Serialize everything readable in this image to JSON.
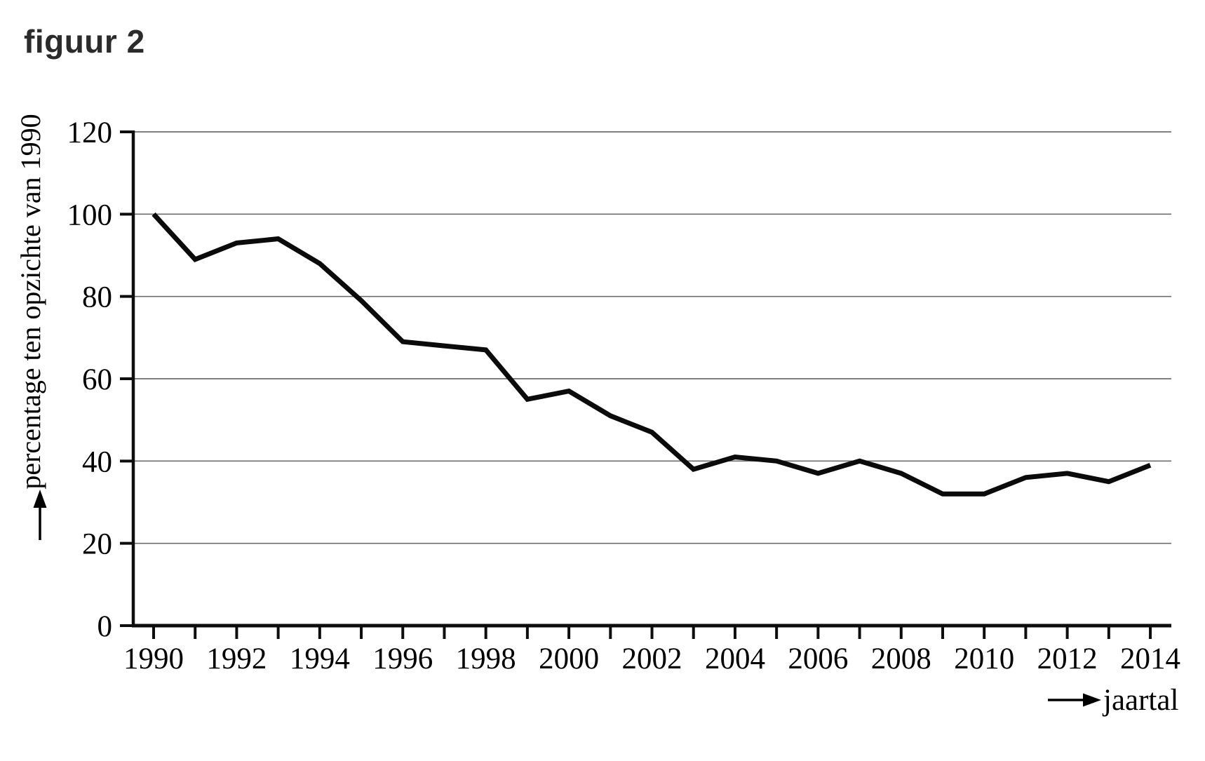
{
  "title": "figuur 2",
  "chart_data": {
    "type": "line",
    "title": "figuur 2",
    "xlabel": "jaartal",
    "ylabel": "percentage ten opzichte van 1990",
    "x": [
      1990,
      1991,
      1992,
      1993,
      1994,
      1995,
      1996,
      1997,
      1998,
      1999,
      2000,
      2001,
      2002,
      2003,
      2004,
      2005,
      2006,
      2007,
      2008,
      2009,
      2010,
      2011,
      2012,
      2013,
      2014
    ],
    "values": [
      100,
      89,
      93,
      94,
      88,
      79,
      69,
      68,
      67,
      55,
      57,
      51,
      47,
      38,
      41,
      40,
      37,
      40,
      37,
      32,
      32,
      36,
      37,
      35,
      39
    ],
    "ylim": [
      0,
      120
    ],
    "yticks": [
      0,
      20,
      40,
      60,
      80,
      100,
      120
    ],
    "xtick_labels": [
      "1990",
      "1992",
      "1994",
      "1996",
      "1998",
      "2000",
      "2002",
      "2004",
      "2006",
      "2008",
      "2010",
      "2012",
      "2014"
    ],
    "ticks_every_year": true,
    "grid": "horizontal",
    "legend_position": "none",
    "colors": {
      "line": "#0b0b0b",
      "grid": "#6e6e6e",
      "axis": "#0d0d0d",
      "text": "#000000",
      "title": "#2b2b2b"
    }
  }
}
